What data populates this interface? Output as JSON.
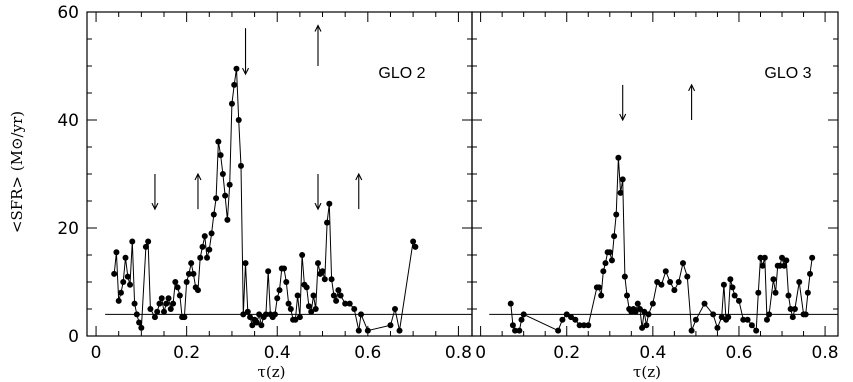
{
  "chart_data": [
    {
      "type": "scatter",
      "panel_label": "GLO 2",
      "xlabel": "τ(z)",
      "ylabel": "<SFR> (M⊙/yr)",
      "xlim": [
        -0.02,
        0.83
      ],
      "ylim": [
        0,
        60
      ],
      "xticks": [
        0,
        0.2,
        0.4,
        0.6,
        0.8
      ],
      "xticklabels": [
        "0",
        "0.2",
        "0.4",
        "0.6",
        "0.8"
      ],
      "yticks": [
        0,
        20,
        40,
        60
      ],
      "yticklabels": [
        "0",
        "20",
        "40",
        "60"
      ],
      "baseline": 4,
      "arrows": [
        {
          "x": 0.13,
          "direction": "down"
        },
        {
          "x": 0.225,
          "direction": "up"
        },
        {
          "x": 0.33,
          "direction": "down"
        },
        {
          "x": 0.49,
          "direction": "up"
        },
        {
          "x": 0.49,
          "direction": "down"
        },
        {
          "x": 0.58,
          "direction": "up"
        }
      ],
      "x": [
        0.04,
        0.045,
        0.05,
        0.055,
        0.06,
        0.065,
        0.07,
        0.075,
        0.08,
        0.085,
        0.09,
        0.095,
        0.1,
        0.11,
        0.115,
        0.12,
        0.13,
        0.135,
        0.14,
        0.145,
        0.15,
        0.155,
        0.16,
        0.165,
        0.17,
        0.175,
        0.18,
        0.185,
        0.19,
        0.195,
        0.2,
        0.205,
        0.21,
        0.215,
        0.22,
        0.225,
        0.23,
        0.235,
        0.24,
        0.245,
        0.25,
        0.255,
        0.26,
        0.265,
        0.27,
        0.275,
        0.28,
        0.285,
        0.29,
        0.295,
        0.3,
        0.305,
        0.31,
        0.315,
        0.32,
        0.325,
        0.33,
        0.335,
        0.34,
        0.345,
        0.35,
        0.355,
        0.36,
        0.365,
        0.37,
        0.375,
        0.38,
        0.385,
        0.39,
        0.395,
        0.4,
        0.405,
        0.41,
        0.415,
        0.42,
        0.425,
        0.43,
        0.435,
        0.44,
        0.445,
        0.45,
        0.455,
        0.46,
        0.465,
        0.47,
        0.475,
        0.48,
        0.485,
        0.49,
        0.495,
        0.5,
        0.505,
        0.51,
        0.515,
        0.52,
        0.525,
        0.53,
        0.535,
        0.54,
        0.55,
        0.56,
        0.57,
        0.58,
        0.585,
        0.6,
        0.65,
        0.66,
        0.67,
        0.7,
        0.705
      ],
      "y": [
        11.5,
        15.5,
        6.5,
        8,
        10,
        14.5,
        11,
        9.5,
        17.5,
        6,
        4,
        2.5,
        1.5,
        16.5,
        17.5,
        5,
        3.5,
        4.5,
        6,
        7,
        4.5,
        6,
        7,
        5,
        6,
        10,
        9,
        7.5,
        3.5,
        3.5,
        10,
        11.5,
        13.5,
        11.5,
        9,
        8.5,
        14.5,
        16.5,
        18.5,
        14.5,
        16,
        19,
        22.5,
        25.5,
        36,
        33.5,
        30,
        26,
        21.5,
        28,
        43,
        46.5,
        49.5,
        40,
        31.5,
        4,
        13.5,
        4.5,
        3.5,
        2,
        3,
        2.5,
        4,
        2,
        3.5,
        4,
        12,
        4,
        3.5,
        4,
        7,
        8.5,
        12.5,
        12.5,
        10,
        6,
        5,
        3,
        3,
        7.5,
        3.5,
        15,
        9.5,
        9,
        5.5,
        4.5,
        7.5,
        5,
        13.5,
        11.5,
        12,
        10.5,
        21,
        24.5,
        10.5,
        7.5,
        6.5,
        8.5,
        7.5,
        6,
        6,
        5,
        1,
        4,
        1,
        2,
        5,
        1,
        17.5,
        16.5
      ]
    },
    {
      "type": "scatter",
      "panel_label": "GLO 3",
      "xlabel": "τ(z)",
      "ylabel": "",
      "xlim": [
        -0.02,
        0.83
      ],
      "ylim": [
        0,
        60
      ],
      "xticks": [
        0,
        0.2,
        0.4,
        0.6,
        0.8
      ],
      "xticklabels": [
        "0",
        "0.2",
        "0.4",
        "0.6",
        "0.8"
      ],
      "yticks": [
        0,
        20,
        40,
        60
      ],
      "yticklabels": [],
      "baseline": 4,
      "arrows": [
        {
          "x": 0.33,
          "direction": "down"
        },
        {
          "x": 0.49,
          "direction": "up"
        }
      ],
      "x": [
        0.07,
        0.075,
        0.08,
        0.09,
        0.095,
        0.1,
        0.18,
        0.19,
        0.2,
        0.21,
        0.22,
        0.23,
        0.24,
        0.25,
        0.27,
        0.275,
        0.28,
        0.285,
        0.29,
        0.295,
        0.3,
        0.305,
        0.31,
        0.315,
        0.32,
        0.325,
        0.33,
        0.335,
        0.34,
        0.345,
        0.35,
        0.355,
        0.36,
        0.365,
        0.37,
        0.375,
        0.38,
        0.385,
        0.39,
        0.4,
        0.41,
        0.42,
        0.43,
        0.44,
        0.45,
        0.46,
        0.47,
        0.48,
        0.49,
        0.5,
        0.52,
        0.54,
        0.55,
        0.56,
        0.565,
        0.57,
        0.575,
        0.58,
        0.585,
        0.59,
        0.6,
        0.61,
        0.62,
        0.63,
        0.64,
        0.645,
        0.65,
        0.655,
        0.66,
        0.665,
        0.67,
        0.68,
        0.685,
        0.69,
        0.695,
        0.7,
        0.705,
        0.71,
        0.715,
        0.72,
        0.725,
        0.73,
        0.74,
        0.75,
        0.755,
        0.76,
        0.765,
        0.77
      ],
      "y": [
        6,
        2,
        1,
        1,
        3,
        4,
        1,
        3,
        4,
        3.5,
        3,
        2,
        2,
        2,
        9,
        9,
        7.5,
        12,
        13.5,
        15.5,
        15.5,
        14,
        18.5,
        22.5,
        33,
        26.5,
        29,
        11,
        7.5,
        5,
        4.5,
        5,
        4.5,
        6,
        5,
        1.5,
        4.5,
        2,
        4,
        6,
        10,
        9.5,
        12,
        10,
        8.5,
        10,
        13.5,
        11,
        1,
        3,
        6,
        4,
        1.5,
        3.5,
        9.5,
        3,
        3.5,
        10.5,
        9,
        7.5,
        6.5,
        3,
        3,
        2,
        1,
        8,
        14.5,
        13,
        14.5,
        3,
        4,
        10.5,
        8,
        13,
        13,
        14.5,
        13,
        14,
        7.5,
        5,
        3.5,
        5,
        10,
        4,
        4,
        8,
        11.5,
        14.5
      ]
    }
  ]
}
